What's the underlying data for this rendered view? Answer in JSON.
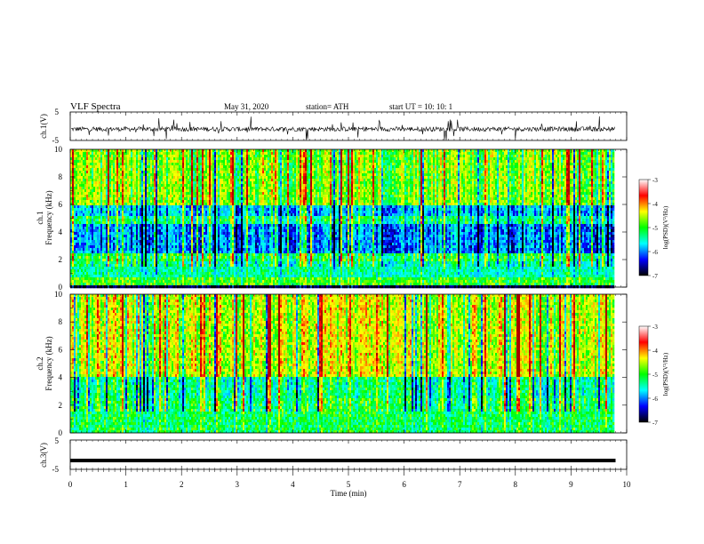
{
  "header": {
    "title": "VLF  Spectra",
    "date": "May 31, 2020",
    "station": "station= ATH",
    "start": "start  UT  =      10: 10: 1"
  },
  "colorbar": {
    "label": "log(PSD)(V²/Hz)",
    "ticks": [
      "-3",
      "-4",
      "-5",
      "-6",
      "-7"
    ],
    "stops": [
      "#ffffff",
      "#ff0000",
      "#ffff00",
      "#00ff00",
      "#00ffff",
      "#0000ff",
      "#000000"
    ]
  },
  "chart_data": [
    {
      "type": "line",
      "id": "ch1",
      "ylabel": "ch.1(V)",
      "ylim": [
        -5,
        5
      ],
      "yticks": [
        "5",
        "-5"
      ],
      "x_range": [
        0,
        9.8
      ],
      "mean_value": -1,
      "description_series": "noisy waveform around -1 V with spikes"
    },
    {
      "type": "heatmap",
      "id": "ch1-spec",
      "ylabel": "ch.1\nFrequency  (kHz)",
      "ylabel_line1": "ch.1",
      "ylabel_line2": "Frequency  (kHz)",
      "ylim": [
        0,
        10
      ],
      "yticks": [
        "0",
        "2",
        "4",
        "6",
        "8",
        "10"
      ],
      "x_range": [
        0,
        9.8
      ],
      "color_scale": [
        -7,
        -3
      ]
    },
    {
      "type": "heatmap",
      "id": "ch2-spec",
      "ylabel_line1": "ch.2",
      "ylabel_line2": "Frequency  (kHz)",
      "ylim": [
        0,
        10
      ],
      "yticks": [
        "0",
        "2",
        "4",
        "6",
        "8",
        "10"
      ],
      "x_range": [
        0,
        9.8
      ],
      "color_scale": [
        -7,
        -3
      ]
    },
    {
      "type": "line",
      "id": "ch3",
      "ylabel": "ch.3(V)",
      "ylim": [
        -5,
        5
      ],
      "yticks": [
        "5",
        "-5"
      ],
      "x_range": [
        0,
        9.8
      ],
      "mean_value": -2
    }
  ],
  "xaxis": {
    "label": "Time  (min)",
    "ticks": [
      "0",
      "1",
      "2",
      "3",
      "4",
      "5",
      "6",
      "7",
      "8",
      "9",
      "10"
    ],
    "xlim": [
      0,
      10
    ]
  }
}
